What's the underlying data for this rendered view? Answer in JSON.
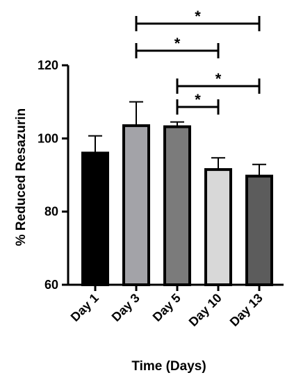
{
  "chart_data": {
    "type": "bar",
    "title": "",
    "xlabel": "Time (Days)",
    "ylabel": "% Reduced Resazurin",
    "ylim": [
      60,
      120
    ],
    "yticks": [
      "60",
      "80",
      "100",
      "120"
    ],
    "categories": [
      "Day 1",
      "Day 3",
      "Day 5",
      "Day 10",
      "Day 13"
    ],
    "values": [
      96,
      103.5,
      103.2,
      91.5,
      89.7
    ],
    "error": [
      4.7,
      6.5,
      1.3,
      3.2,
      3.2
    ],
    "colors": [
      "#000000",
      "#a3a3a8",
      "#7b7b7b",
      "#d8d8d8",
      "#5c5c5c"
    ],
    "significance": [
      {
        "from": "Day 3",
        "to": "Day 13",
        "label": "*"
      },
      {
        "from": "Day 3",
        "to": "Day 10",
        "label": "*"
      },
      {
        "from": "Day 5",
        "to": "Day 13",
        "label": "*"
      },
      {
        "from": "Day 5",
        "to": "Day 10",
        "label": "*"
      }
    ],
    "grid": false,
    "legend": "none"
  }
}
